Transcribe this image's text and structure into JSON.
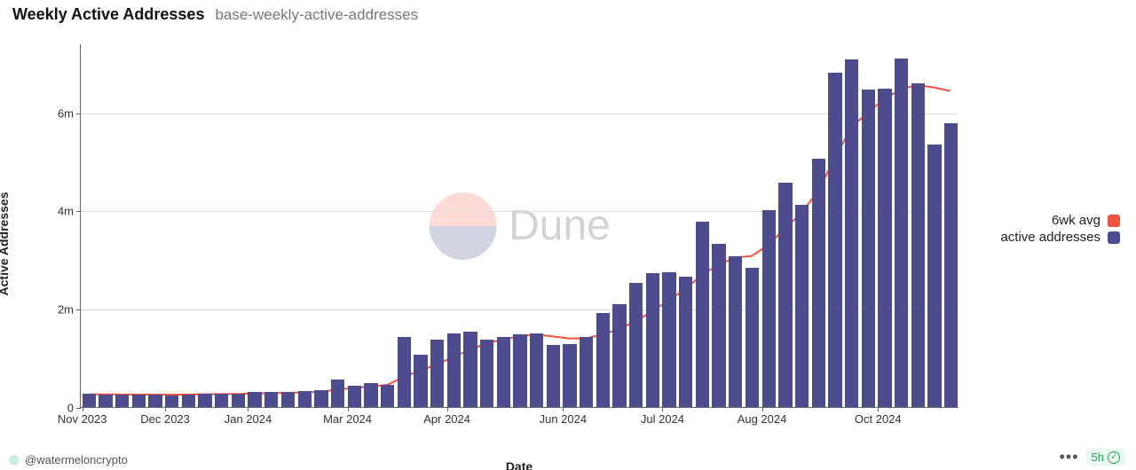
{
  "header": {
    "title": "Weekly Active Addresses",
    "subtitle": "base-weekly-active-addresses"
  },
  "chart": {
    "type": "bar+line",
    "ylabel": "Active Addresses",
    "xlabel": "Date",
    "ylim": [
      0,
      7400000
    ],
    "yticks": [
      {
        "v": 0,
        "label": "0"
      },
      {
        "v": 2000000,
        "label": "2m"
      },
      {
        "v": 4000000,
        "label": "4m"
      },
      {
        "v": 6000000,
        "label": "6m"
      }
    ],
    "xticks": [
      {
        "idx": 0,
        "label": "Nov 2023"
      },
      {
        "idx": 5,
        "label": "Dec 2023"
      },
      {
        "idx": 10,
        "label": "Jan 2024"
      },
      {
        "idx": 16,
        "label": "Mar 2024"
      },
      {
        "idx": 22,
        "label": "Apr 2024"
      },
      {
        "idx": 29,
        "label": "Jun 2024"
      },
      {
        "idx": 35,
        "label": "Jul 2024"
      },
      {
        "idx": 41,
        "label": "Aug 2024"
      },
      {
        "idx": 48,
        "label": "Oct 2024"
      }
    ],
    "bar_color": "#4c4c8f",
    "line_color": "#f4533b",
    "grid_color": "#dddddd",
    "axis_color": "#666666",
    "background_color": "#ffffff",
    "bar_gap_ratio": 0.18,
    "line_width": 2,
    "bars": [
      270000,
      260000,
      250000,
      250000,
      250000,
      230000,
      260000,
      280000,
      270000,
      270000,
      300000,
      300000,
      310000,
      320000,
      340000,
      560000,
      440000,
      480000,
      450000,
      1420000,
      1060000,
      1380000,
      1500000,
      1530000,
      1380000,
      1420000,
      1480000,
      1500000,
      1260000,
      1280000,
      1430000,
      1920000,
      2090000,
      2520000,
      2720000,
      2740000,
      2660000,
      3780000,
      3320000,
      3060000,
      2830000,
      4000000,
      4570000,
      4120000,
      5050000,
      6800000,
      7070000,
      6470000,
      6480000,
      7100000,
      6580000,
      5340000,
      5780000
    ],
    "avg": [
      260000,
      258000,
      256000,
      255000,
      254000,
      252000,
      255000,
      260000,
      264000,
      268000,
      275000,
      283000,
      290000,
      298000,
      310000,
      360000,
      390000,
      420000,
      450000,
      620000,
      740000,
      870000,
      1020000,
      1170000,
      1300000,
      1380000,
      1440000,
      1480000,
      1440000,
      1400000,
      1400000,
      1480000,
      1590000,
      1750000,
      1950000,
      2180000,
      2400000,
      2700000,
      2900000,
      3050000,
      3080000,
      3300000,
      3640000,
      3950000,
      4400000,
      5050000,
      5700000,
      6000000,
      6280000,
      6480000,
      6570000,
      6520000,
      6450000
    ]
  },
  "legend": {
    "items": [
      {
        "label": "6wk avg",
        "color": "#f4533b"
      },
      {
        "label": "active addresses",
        "color": "#4c4c8f"
      }
    ]
  },
  "watermark": {
    "text": "Dune"
  },
  "footer": {
    "author": "@watermeloncrypto",
    "freshness": "5h"
  }
}
